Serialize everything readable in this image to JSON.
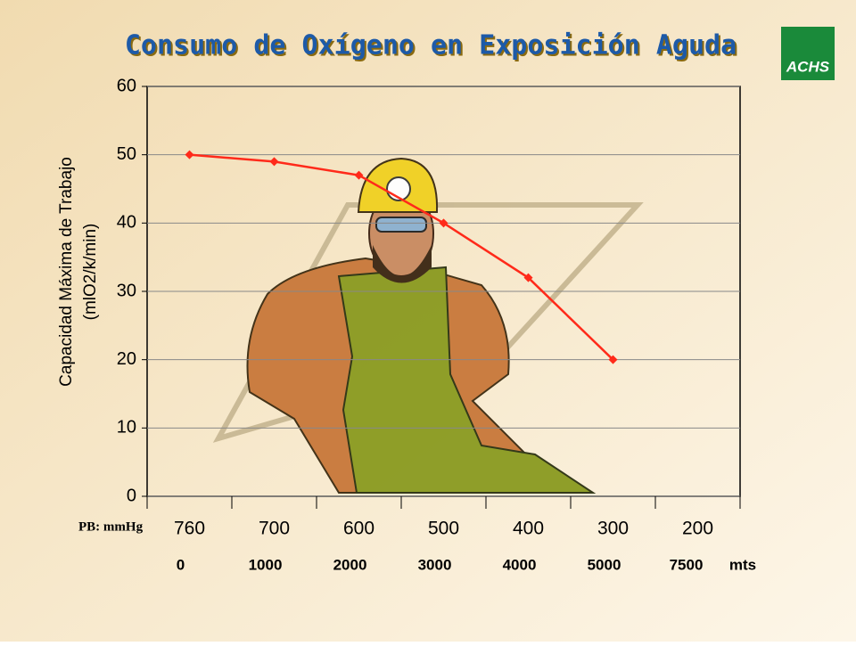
{
  "chart_data": {
    "type": "line",
    "title": "Consumo de Oxígeno en Exposición Aguda",
    "ylabel": [
      "Capacidad Máxima de Trabajo",
      "(mlO2/k/min)"
    ],
    "x_row_label": "PB: mmHg",
    "categories": [
      "760",
      "700",
      "600",
      "500",
      "400",
      "300",
      "200"
    ],
    "altitudes": [
      "0",
      "1000",
      "2000",
      "3000",
      "4000",
      "5000",
      "7500"
    ],
    "altitude_unit": "mts",
    "series": [
      {
        "color": "#ff2a1a",
        "values": [
          50,
          49,
          47,
          40,
          32,
          20,
          null
        ]
      }
    ],
    "ylim": [
      0,
      60
    ],
    "yticks": [
      0,
      10,
      20,
      30,
      40,
      50,
      60
    ],
    "grid": true
  },
  "logo": "ACHS"
}
